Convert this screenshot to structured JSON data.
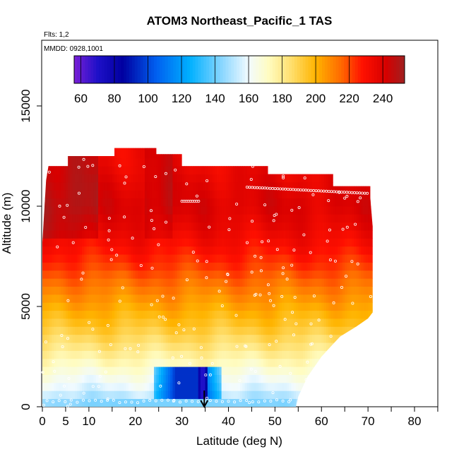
{
  "chart_data": {
    "type": "heatmap",
    "title": "ATOM3 Northeast_Pacific_1 TAS",
    "subtitle_flights": "Flts: 1,2",
    "subtitle_dates": "MMDD: 0928,1001",
    "xlabel": "Latitude (deg N)",
    "ylabel": "Altitude (m)",
    "xlim": [
      0,
      85
    ],
    "ylim": [
      0,
      18000
    ],
    "x_ticks": [
      0,
      5,
      10,
      20,
      30,
      40,
      50,
      60,
      70,
      80
    ],
    "x_minor_ticks": [
      15,
      25,
      35,
      45,
      55,
      65,
      75,
      85
    ],
    "y_ticks": [
      0,
      5000,
      10000,
      15000
    ],
    "colorbar": {
      "range": [
        56,
        253
      ],
      "ticks": [
        60,
        80,
        100,
        120,
        140,
        160,
        180,
        200,
        220,
        240
      ],
      "stops": [
        {
          "v": 56,
          "c": "#7a1fd6"
        },
        {
          "v": 70,
          "c": "#1e10c8"
        },
        {
          "v": 85,
          "c": "#0000a0"
        },
        {
          "v": 105,
          "c": "#0060f0"
        },
        {
          "v": 125,
          "c": "#00b0ff"
        },
        {
          "v": 145,
          "c": "#90d8ff"
        },
        {
          "v": 160,
          "c": "#f2fbff"
        },
        {
          "v": 172,
          "c": "#fffcc0"
        },
        {
          "v": 185,
          "c": "#ffe070"
        },
        {
          "v": 200,
          "c": "#ffb400"
        },
        {
          "v": 215,
          "c": "#ff6a00"
        },
        {
          "v": 228,
          "c": "#ff1000"
        },
        {
          "v": 242,
          "c": "#d60000"
        },
        {
          "v": 253,
          "c": "#a02020"
        }
      ]
    },
    "altitude_profile_tas": [
      {
        "alt": 0,
        "tas": 143
      },
      {
        "alt": 500,
        "tas": 150
      },
      {
        "alt": 1000,
        "tas": 158
      },
      {
        "alt": 2000,
        "tas": 170
      },
      {
        "alt": 3000,
        "tas": 183
      },
      {
        "alt": 4000,
        "tas": 194
      },
      {
        "alt": 5000,
        "tas": 203
      },
      {
        "alt": 6000,
        "tas": 212
      },
      {
        "alt": 7000,
        "tas": 222
      },
      {
        "alt": 8000,
        "tas": 230
      },
      {
        "alt": 9000,
        "tas": 236
      },
      {
        "alt": 10000,
        "tas": 240
      },
      {
        "alt": 11000,
        "tas": 238
      },
      {
        "alt": 12000,
        "tas": 235
      },
      {
        "alt": 13000,
        "tas": 234
      }
    ],
    "coverage_envelope": [
      {
        "lat": 0.0,
        "alt": 0
      },
      {
        "lat": 0.0,
        "alt": 8200
      },
      {
        "lat": 0.8,
        "alt": 11300
      },
      {
        "lat": 1.3,
        "alt": 12000
      },
      {
        "lat": 5.5,
        "alt": 12000
      },
      {
        "lat": 5.5,
        "alt": 12500
      },
      {
        "lat": 15.5,
        "alt": 12500
      },
      {
        "lat": 15.5,
        "alt": 12900
      },
      {
        "lat": 24.5,
        "alt": 12900
      },
      {
        "lat": 24.5,
        "alt": 12600
      },
      {
        "lat": 30.0,
        "alt": 12600
      },
      {
        "lat": 30.0,
        "alt": 12000
      },
      {
        "lat": 48.5,
        "alt": 12000
      },
      {
        "lat": 48.5,
        "alt": 11600
      },
      {
        "lat": 62.5,
        "alt": 11600
      },
      {
        "lat": 62.5,
        "alt": 11000
      },
      {
        "lat": 70.5,
        "alt": 11000
      },
      {
        "lat": 70.5,
        "alt": 10400
      },
      {
        "lat": 71.0,
        "alt": 9000
      },
      {
        "lat": 71.0,
        "alt": 4700
      },
      {
        "lat": 70.0,
        "alt": 4400
      },
      {
        "lat": 67.5,
        "alt": 4000
      },
      {
        "lat": 64.0,
        "alt": 3500
      },
      {
        "lat": 62.0,
        "alt": 3000
      },
      {
        "lat": 60.0,
        "alt": 2500
      },
      {
        "lat": 58.5,
        "alt": 2000
      },
      {
        "lat": 57.0,
        "alt": 1500
      },
      {
        "lat": 56.0,
        "alt": 1000
      },
      {
        "lat": 55.0,
        "alt": 500
      },
      {
        "lat": 54.5,
        "alt": 0
      }
    ],
    "anomalies": [
      {
        "lat_min": 24.0,
        "lat_max": 38.5,
        "alt_min": 400,
        "alt_max": 2000,
        "tas": 95,
        "label": "low-speed region near 35N"
      },
      {
        "lat_min": 33.5,
        "lat_max": 35.5,
        "alt_min": 500,
        "alt_max": 1800,
        "tas": 70,
        "label": "minimum near 35N"
      },
      {
        "lat_min": 0.0,
        "lat_max": 54.5,
        "alt_min": 0,
        "alt_max": 400,
        "tas": 142,
        "label": "surface layer"
      }
    ],
    "marker": {
      "lat": 34.8,
      "label": "arrow"
    },
    "point_marks": "white open circles along flight track"
  }
}
